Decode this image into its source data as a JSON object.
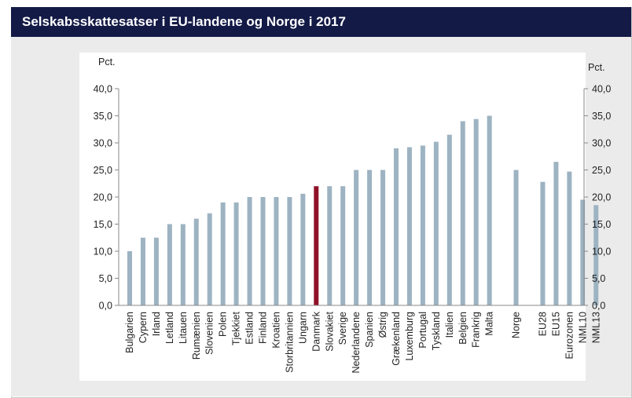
{
  "header": {
    "title": "Selskabsskattesatser i EU-landene og Norge i 2017"
  },
  "colors": {
    "title_bg": "#131a46",
    "panel_bg": "#ebebeb",
    "plot_bg": "#ffffff",
    "bar": "#9db3c2",
    "highlight_bar": "#8e1228",
    "axis": "#8a8a8a"
  },
  "chart_data": {
    "type": "bar",
    "title": "Selskabsskattesatser i EU-landene og Norge i 2017",
    "ylabel_left": "Pct.",
    "ylabel_right": "Pct.",
    "ylim": [
      0,
      40
    ],
    "yticks": [
      "0,0",
      "5,0",
      "10,0",
      "15,0",
      "20,0",
      "25,0",
      "30,0",
      "35,0",
      "40,0"
    ],
    "grid": false,
    "highlight": "Danmark",
    "categories": [
      "Bulgarien",
      "Cypern",
      "Irland",
      "Letland",
      "Litauen",
      "Rumænien",
      "Slovenien",
      "Polen",
      "Tjekkiet",
      "Estland",
      "Finland",
      "Kroatien",
      "Storbritannien",
      "Ungarn",
      "Danmark",
      "Slovakiet",
      "Sverige",
      "Nederlandene",
      "Spanien",
      "Østrig",
      "Grækenland",
      "Luxemburg",
      "Portugal",
      "Tyskland",
      "Italien",
      "Belgien",
      "Frankrig",
      "Malta",
      "",
      "Norge",
      "",
      "EU28",
      "EU15",
      "Eurozonen",
      "NML10",
      "NML13"
    ],
    "values": [
      10.0,
      12.5,
      12.5,
      15.0,
      15.0,
      16.0,
      17.0,
      19.0,
      19.0,
      20.0,
      20.0,
      20.0,
      20.0,
      20.6,
      22.0,
      22.0,
      22.0,
      25.0,
      25.0,
      25.0,
      29.0,
      29.2,
      29.5,
      30.2,
      31.5,
      34.0,
      34.4,
      35.0,
      null,
      25.0,
      null,
      22.8,
      26.5,
      24.7,
      19.5,
      18.5
    ]
  }
}
